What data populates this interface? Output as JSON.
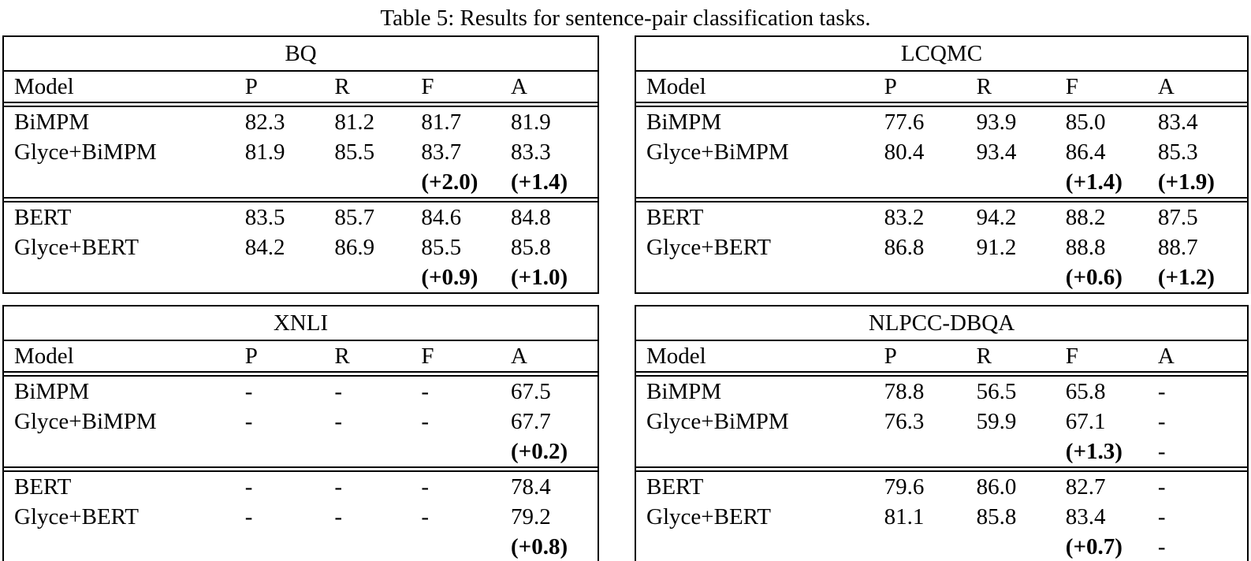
{
  "caption": "Table 5: Results for sentence-pair classification tasks.",
  "column_headers": [
    "Model",
    "P",
    "R",
    "F",
    "A"
  ],
  "tables": [
    {
      "title": "BQ",
      "sections": [
        {
          "rows": [
            {
              "cells": [
                "BiMPM",
                "82.3",
                "81.2",
                "81.7",
                "81.9"
              ]
            },
            {
              "cells": [
                "Glyce+BiMPM",
                "81.9",
                "85.5",
                "83.7",
                "83.3"
              ]
            },
            {
              "cells": [
                "",
                "",
                "",
                "(+2.0)",
                "(+1.4)"
              ]
            }
          ]
        },
        {
          "rows": [
            {
              "cells": [
                "BERT",
                "83.5",
                "85.7",
                "84.6",
                "84.8"
              ]
            },
            {
              "cells": [
                "Glyce+BERT",
                "84.2",
                "86.9",
                "85.5",
                "85.8"
              ]
            },
            {
              "cells": [
                "",
                "",
                "",
                "(+0.9)",
                "(+1.0)"
              ]
            }
          ]
        }
      ]
    },
    {
      "title": "LCQMC",
      "sections": [
        {
          "rows": [
            {
              "cells": [
                "BiMPM",
                "77.6",
                "93.9",
                "85.0",
                "83.4"
              ]
            },
            {
              "cells": [
                "Glyce+BiMPM",
                "80.4",
                "93.4",
                "86.4",
                "85.3"
              ]
            },
            {
              "cells": [
                "",
                "",
                "",
                "(+1.4)",
                "(+1.9)"
              ]
            }
          ]
        },
        {
          "rows": [
            {
              "cells": [
                "BERT",
                "83.2",
                "94.2",
                "88.2",
                "87.5"
              ]
            },
            {
              "cells": [
                "Glyce+BERT",
                "86.8",
                "91.2",
                "88.8",
                "88.7"
              ]
            },
            {
              "cells": [
                "",
                "",
                "",
                "(+0.6)",
                "(+1.2)"
              ]
            }
          ]
        }
      ]
    },
    {
      "title": "XNLI",
      "sections": [
        {
          "rows": [
            {
              "cells": [
                "BiMPM",
                "-",
                "-",
                "-",
                "67.5"
              ]
            },
            {
              "cells": [
                "Glyce+BiMPM",
                "-",
                "-",
                "-",
                "67.7"
              ]
            },
            {
              "cells": [
                "",
                "",
                "",
                "",
                "(+0.2)"
              ]
            }
          ]
        },
        {
          "rows": [
            {
              "cells": [
                "BERT",
                "-",
                "-",
                "-",
                "78.4"
              ]
            },
            {
              "cells": [
                "Glyce+BERT",
                "-",
                "-",
                "-",
                "79.2"
              ]
            },
            {
              "cells": [
                "",
                "",
                "",
                "",
                "(+0.8)"
              ]
            }
          ]
        }
      ]
    },
    {
      "title": "NLPCC-DBQA",
      "sections": [
        {
          "rows": [
            {
              "cells": [
                "BiMPM",
                "78.8",
                "56.5",
                "65.8",
                "-"
              ]
            },
            {
              "cells": [
                "Glyce+BiMPM",
                "76.3",
                "59.9",
                "67.1",
                "-"
              ]
            },
            {
              "cells": [
                "",
                "",
                "",
                "(+1.3)",
                "-"
              ]
            }
          ]
        },
        {
          "rows": [
            {
              "cells": [
                "BERT",
                "79.6",
                "86.0",
                "82.7",
                "-"
              ]
            },
            {
              "cells": [
                "Glyce+BERT",
                "81.1",
                "85.8",
                "83.4",
                "-"
              ]
            },
            {
              "cells": [
                "",
                "",
                "",
                "(+0.7)",
                "-"
              ]
            }
          ]
        }
      ]
    }
  ]
}
